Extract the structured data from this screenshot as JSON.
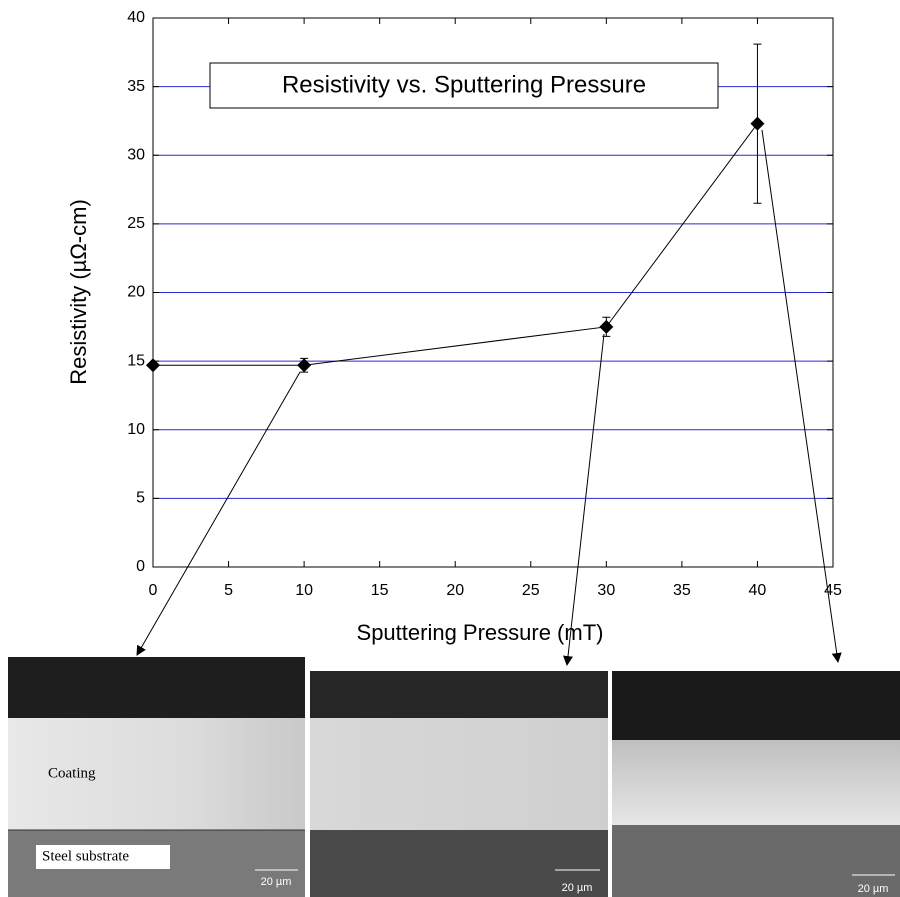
{
  "chart_data": {
    "type": "line",
    "title": "Resistivity vs. Sputtering Pressure",
    "x_label": "Sputtering Pressure (mT)",
    "y_label": "Resistivity (µΩ-cm)",
    "x": [
      0,
      10,
      30,
      40
    ],
    "series": [
      {
        "color": "#000000",
        "values": [
          14.7,
          14.7,
          17.5,
          32.3
        ],
        "errors": [
          null,
          0.5,
          0.7,
          5.8
        ]
      }
    ],
    "xlim": [
      0,
      45
    ],
    "xticks": [
      0,
      5,
      10,
      15,
      20,
      25,
      30,
      35,
      40,
      45
    ],
    "ylim": [
      0,
      40
    ],
    "yticks": [
      0,
      5,
      10,
      15,
      20,
      25,
      30,
      35,
      40
    ],
    "grid": true,
    "grid_color": "#2a2ad0"
  },
  "micrographs": [
    {
      "coating_label": "Coating",
      "substrate_label": "Steel substrate",
      "scale": "20 µm"
    },
    {
      "scale": "20 µm"
    },
    {
      "scale": "20 µm"
    }
  ]
}
